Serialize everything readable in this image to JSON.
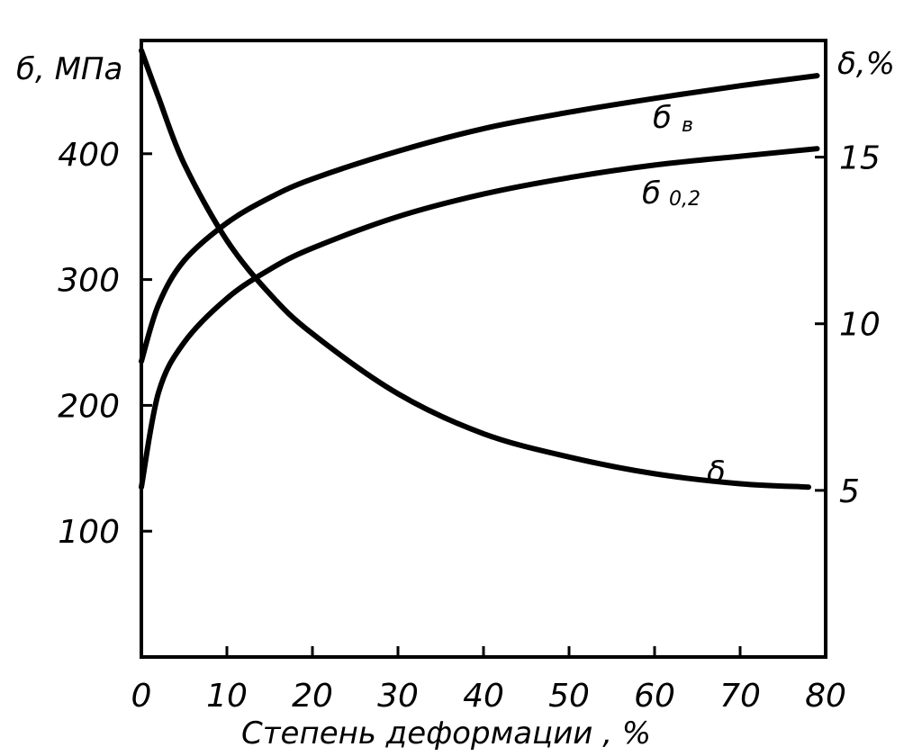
{
  "chart_data": {
    "type": "line",
    "xlabel": "Степень деформации , %",
    "ylabel_left": "б, МПа",
    "ylabel_right": "δ,%",
    "x_ticks": [
      0,
      10,
      20,
      30,
      40,
      50,
      60,
      70,
      80
    ],
    "y_left_ticks": [
      100,
      200,
      300,
      400
    ],
    "y_right_ticks": [
      5,
      10,
      15
    ],
    "xlim": [
      0,
      80
    ],
    "ylim_left": [
      0,
      490
    ],
    "ylim_right": [
      0,
      18.5
    ],
    "grid": false,
    "series": [
      {
        "name": "б в",
        "label_main": "б",
        "label_sub": "в",
        "axis": "left",
        "x": [
          0,
          2,
          5,
          10,
          15,
          20,
          30,
          40,
          50,
          60,
          70,
          79
        ],
        "y": [
          235,
          280,
          315,
          345,
          365,
          380,
          402,
          420,
          433,
          444,
          454,
          462
        ]
      },
      {
        "name": "б 0,2",
        "label_main": "б",
        "label_sub": "0,2",
        "axis": "left",
        "x": [
          0,
          2,
          5,
          10,
          15,
          20,
          30,
          40,
          50,
          60,
          70,
          79
        ],
        "y": [
          135,
          210,
          250,
          285,
          308,
          325,
          350,
          368,
          381,
          391,
          398,
          404
        ]
      },
      {
        "name": "δ",
        "label_main": "δ",
        "label_sub": "",
        "axis": "right",
        "x": [
          0,
          2,
          5,
          10,
          15,
          20,
          30,
          40,
          50,
          60,
          70,
          78
        ],
        "y": [
          18.2,
          16.8,
          14.8,
          12.5,
          10.9,
          9.7,
          7.9,
          6.7,
          6.0,
          5.5,
          5.2,
          5.1
        ]
      }
    ]
  }
}
